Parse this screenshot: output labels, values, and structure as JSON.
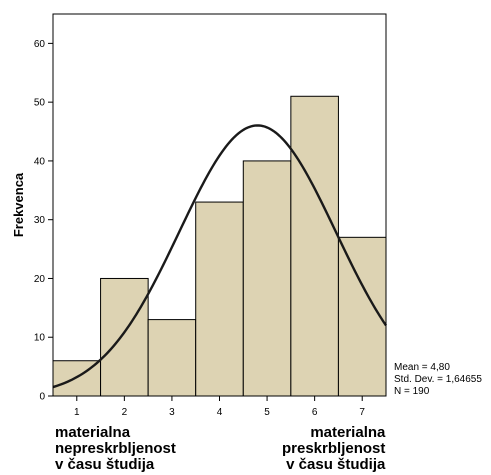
{
  "chart_data": {
    "type": "bar",
    "title": "",
    "xlabel": "",
    "ylabel": "Frekvenca",
    "categories": [
      "1",
      "2",
      "3",
      "4",
      "5",
      "6",
      "7"
    ],
    "values": [
      6,
      20,
      13,
      33,
      40,
      51,
      27
    ],
    "ylim": [
      0,
      65
    ],
    "yticks": [
      0,
      10,
      20,
      30,
      40,
      50,
      60
    ],
    "xlim": [
      0.5,
      7.5
    ],
    "grid": false,
    "bar_color": "#ddd3b3",
    "curve": {
      "type": "normal",
      "mean": 4.8,
      "std": 1.64655,
      "n": 190,
      "bin_width": 1,
      "color": "#1a1a1a"
    },
    "stats_labels": [
      "Mean = 4,80",
      "Std. Dev. = 1,64655",
      "N = 190"
    ]
  },
  "annotations": {
    "low_end": [
      "materialna",
      "nepreskrbljenost",
      "v času študija"
    ],
    "high_end": [
      "materialna",
      "preskrbljenost",
      "v času študija"
    ]
  }
}
